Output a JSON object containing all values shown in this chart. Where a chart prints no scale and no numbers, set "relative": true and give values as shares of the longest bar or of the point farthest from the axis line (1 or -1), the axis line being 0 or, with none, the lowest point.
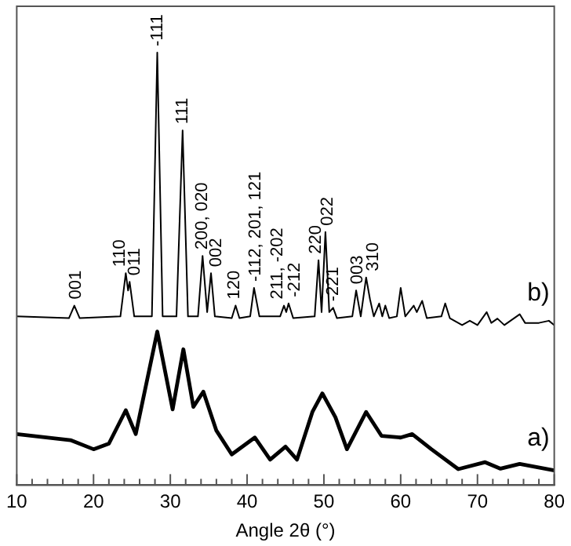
{
  "chart_data": {
    "type": "line",
    "relative": true,
    "xlabel": "Angle 2θ (°)",
    "marker": "none",
    "line_style": "solid",
    "grid": false,
    "legend": false,
    "xlim": [
      10,
      80
    ],
    "xticks": [
      10,
      {
        "value": 12,
        "label": null
      },
      {
        "value": 14,
        "label": null
      },
      {
        "value": 16,
        "label": null
      },
      {
        "value": 18,
        "label": null
      },
      20,
      {
        "value": 22,
        "label": null
      },
      {
        "value": 24,
        "label": null
      },
      {
        "value": 26,
        "label": null
      },
      {
        "value": 28,
        "label": null
      },
      30,
      {
        "value": 32,
        "label": null
      },
      {
        "value": 34,
        "label": null
      },
      {
        "value": 36,
        "label": null
      },
      {
        "value": 38,
        "label": null
      },
      40,
      {
        "value": 42,
        "label": null
      },
      {
        "value": 44,
        "label": null
      },
      {
        "value": 46,
        "label": null
      },
      {
        "value": 48,
        "label": null
      },
      50,
      {
        "value": 52,
        "label": null
      },
      {
        "value": 54,
        "label": null
      },
      {
        "value": 56,
        "label": null
      },
      {
        "value": 58,
        "label": null
      },
      60,
      {
        "value": 62,
        "label": null
      },
      {
        "value": 64,
        "label": null
      },
      {
        "value": 66,
        "label": null
      },
      {
        "value": 68,
        "label": null
      },
      70,
      {
        "value": 72,
        "label": null
      },
      {
        "value": 74,
        "label": null
      },
      {
        "value": 76,
        "label": null
      },
      {
        "value": 78,
        "label": null
      },
      80
    ],
    "series": [
      {
        "name": "b)",
        "color": "#000000",
        "x": [
          10,
          16.8,
          17.5,
          18.2,
          23.5,
          24.2,
          24.5,
          24.7,
          25.3,
          27.6,
          28.3,
          29.0,
          30.8,
          31.6,
          32.3,
          33.6,
          34.2,
          34.8,
          35.3,
          35.8,
          38.0,
          38.5,
          39.0,
          40.4,
          40.9,
          41.6,
          44.3,
          44.8,
          45.1,
          45.4,
          46.0,
          48.8,
          49.3,
          49.7,
          50.2,
          50.7,
          51.2,
          51.7,
          53.7,
          54.2,
          54.8,
          55.5,
          56.0,
          56.5,
          57.2,
          57.6,
          58.0,
          58.5,
          59.5,
          60.0,
          60.6,
          61.7,
          62.1,
          62.8,
          63.4,
          65.3,
          65.8,
          66.4,
          68.0,
          69.0,
          70.0,
          71.2,
          71.8,
          72.6,
          73.5,
          75.5,
          76.2,
          78.0,
          79.3,
          80
        ],
        "values": [
          0.39,
          0.386,
          0.415,
          0.386,
          0.39,
          0.49,
          0.45,
          0.47,
          0.39,
          0.39,
          1.0,
          0.39,
          0.39,
          0.82,
          0.39,
          0.39,
          0.53,
          0.4,
          0.49,
          0.39,
          0.386,
          0.415,
          0.386,
          0.39,
          0.456,
          0.39,
          0.39,
          0.415,
          0.4,
          0.42,
          0.386,
          0.39,
          0.52,
          0.4,
          0.585,
          0.4,
          0.41,
          0.386,
          0.39,
          0.45,
          0.39,
          0.48,
          0.43,
          0.39,
          0.42,
          0.39,
          0.415,
          0.386,
          0.39,
          0.456,
          0.39,
          0.415,
          0.4,
          0.426,
          0.386,
          0.39,
          0.42,
          0.386,
          0.37,
          0.38,
          0.37,
          0.4,
          0.375,
          0.385,
          0.37,
          0.395,
          0.375,
          0.375,
          0.38,
          0.37
        ]
      },
      {
        "name": "a)",
        "color": "#000000",
        "x": [
          10,
          17,
          20,
          22,
          24.2,
          25.5,
          28.3,
          30.3,
          31.7,
          33,
          34.3,
          36,
          38,
          41,
          43,
          45,
          46.5,
          48.5,
          49.8,
          51.5,
          53,
          55.5,
          57.5,
          60,
          61.5,
          64,
          67.5,
          71,
          73,
          75.5,
          80
        ],
        "values": [
          0.118,
          0.104,
          0.083,
          0.096,
          0.173,
          0.118,
          0.355,
          0.175,
          0.314,
          0.181,
          0.216,
          0.126,
          0.071,
          0.11,
          0.059,
          0.089,
          0.059,
          0.169,
          0.212,
          0.157,
          0.083,
          0.169,
          0.114,
          0.11,
          0.118,
          0.083,
          0.037,
          0.053,
          0.038,
          0.049,
          0.034
        ]
      }
    ],
    "annotations": [
      {
        "text": "001",
        "x": 17.7,
        "y": 0.415
      },
      {
        "text": "110",
        "x": 23.4,
        "y": 0.49
      },
      {
        "text": "011",
        "x": 25.4,
        "y": 0.47
      },
      {
        "text": "-111",
        "x": 28.3,
        "y": 1.0
      },
      {
        "text": "111",
        "x": 31.6,
        "y": 0.82
      },
      {
        "text": "200, 020",
        "x": 34.2,
        "y": 0.53
      },
      {
        "text": "002",
        "x": 36.0,
        "y": 0.49
      },
      {
        "text": "120",
        "x": 38.4,
        "y": 0.415
      },
      {
        "text": "-112, 201, 121",
        "x": 41.1,
        "y": 0.456
      },
      {
        "text": "211, -202",
        "x": 44.0,
        "y": 0.415
      },
      {
        "text": "-212",
        "x": 46.2,
        "y": 0.42
      },
      {
        "text": "220",
        "x": 49.0,
        "y": 0.52
      },
      {
        "text": "022",
        "x": 50.5,
        "y": 0.585
      },
      {
        "text": "-221",
        "x": 51.2,
        "y": 0.41
      },
      {
        "text": "003",
        "x": 54.4,
        "y": 0.45
      },
      {
        "text": "310",
        "x": 56.4,
        "y": 0.48
      }
    ]
  }
}
